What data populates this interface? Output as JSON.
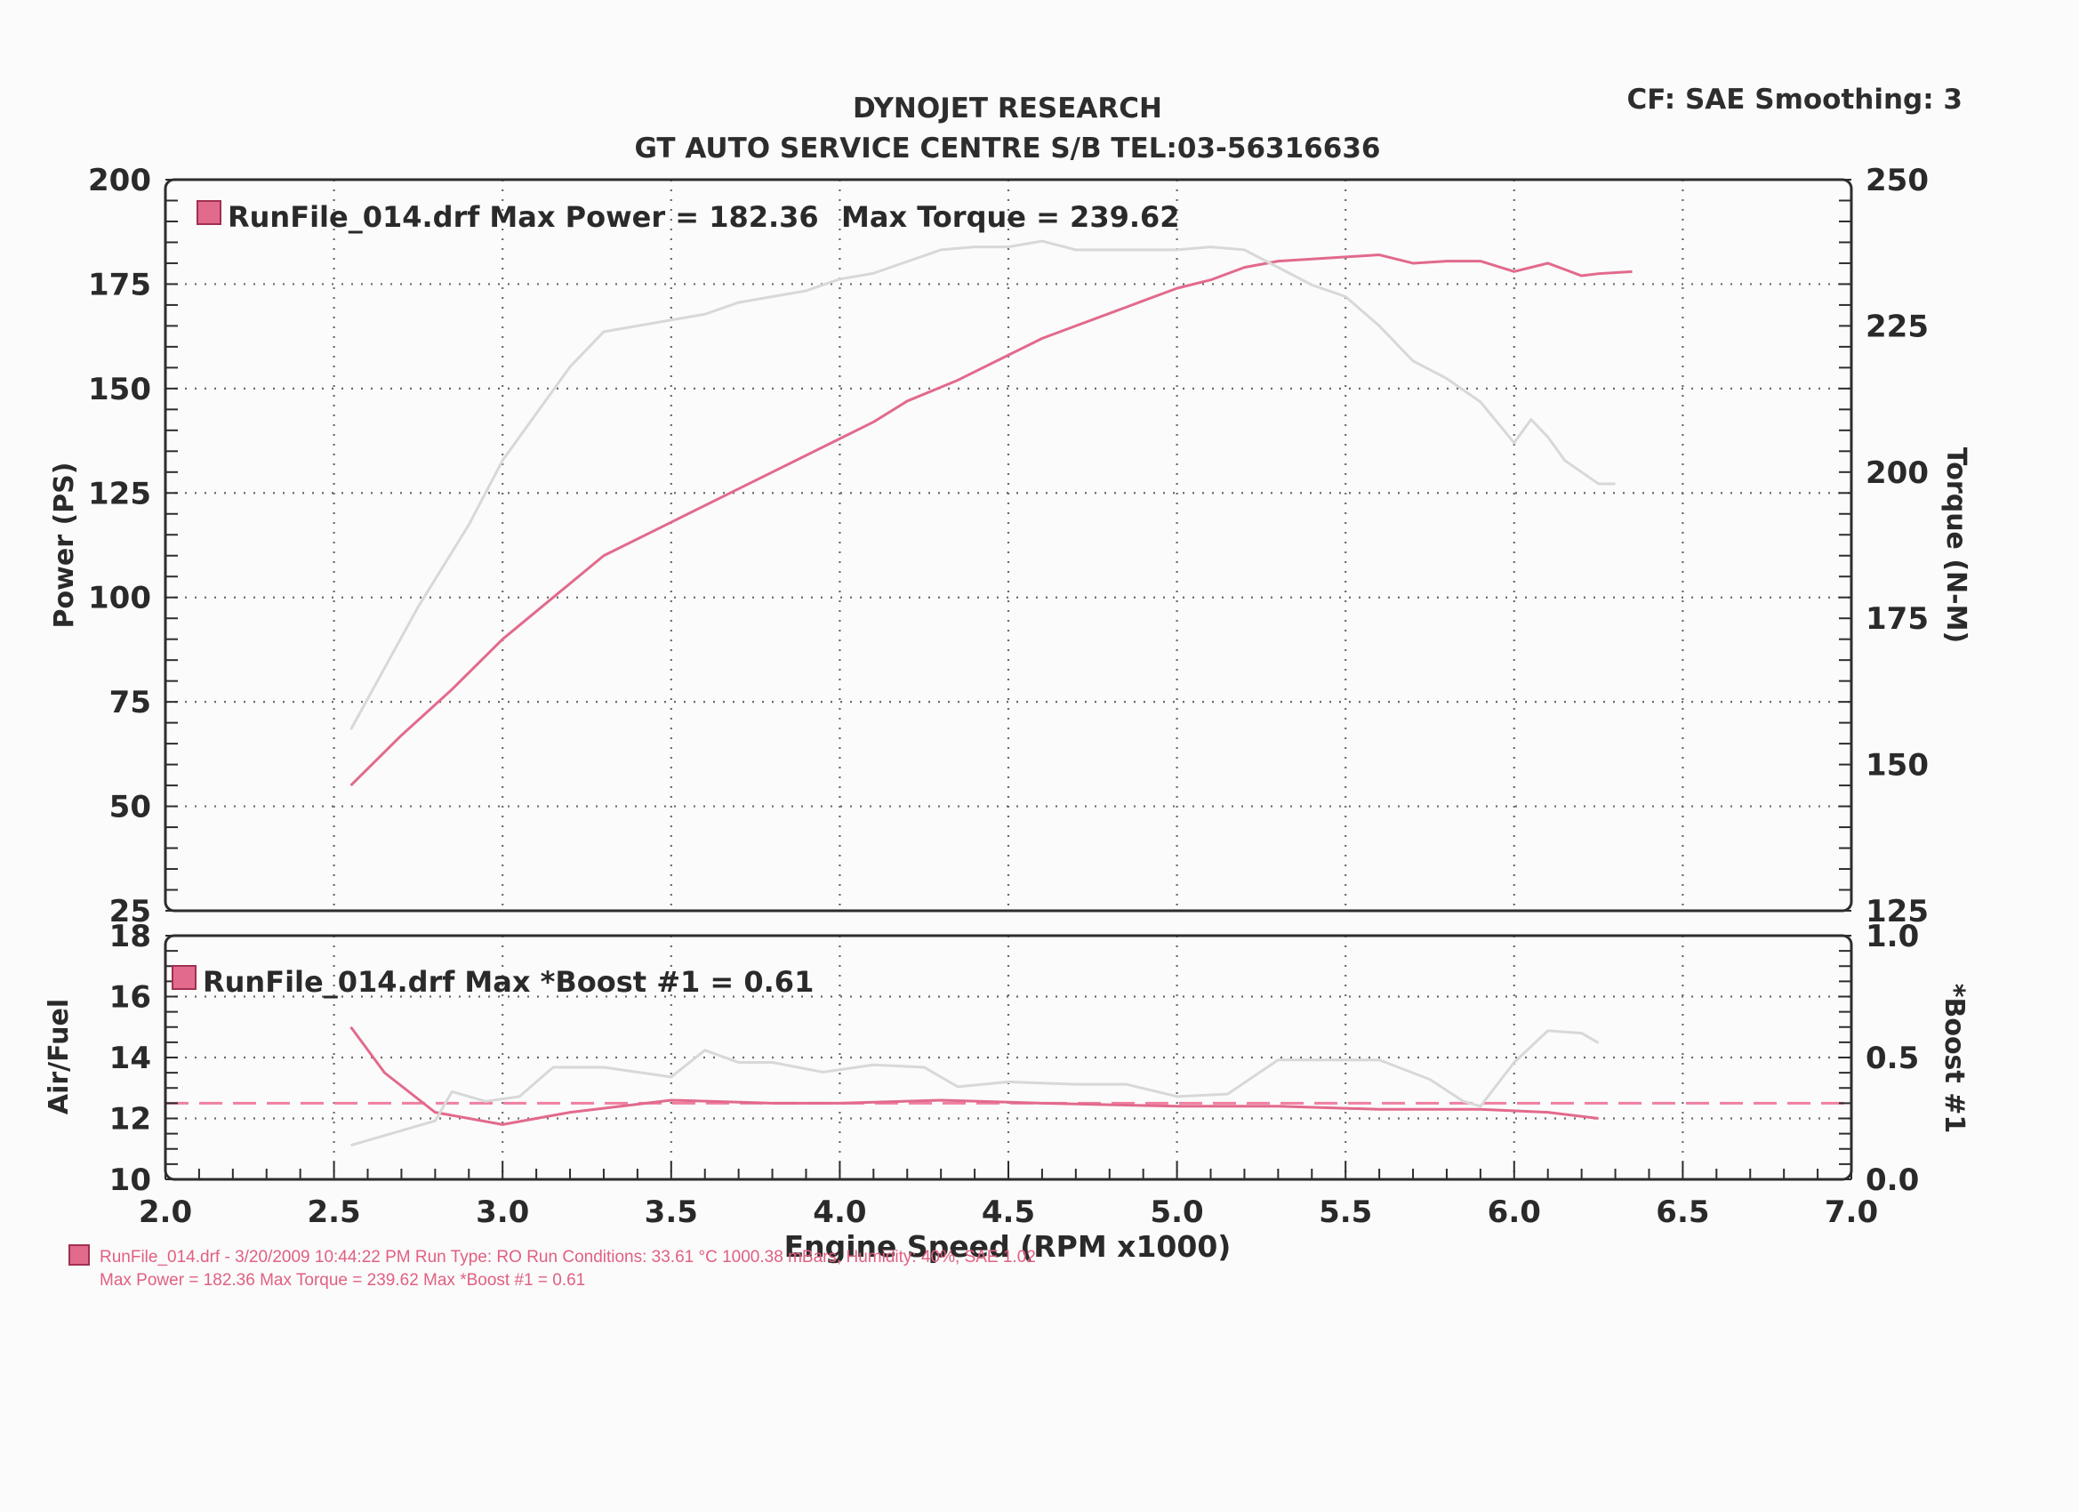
{
  "header": {
    "title": "DYNOJET RESEARCH",
    "subtitle": "GT AUTO SERVICE CENTRE S/B TEL:03-56316636",
    "settings": "CF: SAE  Smoothing: 3"
  },
  "chart_data": [
    {
      "type": "line",
      "name": "power-torque",
      "legend": "RunFile_014.drf Max Power = 182.36",
      "legend_extra": "Max Torque = 239.62",
      "xlabel": "Engine Speed (RPM x1000)",
      "xlim": [
        2.0,
        7.0
      ],
      "x_ticks": [
        "2.0",
        "2.5",
        "3.0",
        "3.5",
        "4.0",
        "4.5",
        "5.0",
        "5.5",
        "6.0",
        "6.5",
        "7.0"
      ],
      "ylabel": "Power (PS)",
      "ylim": [
        25,
        200
      ],
      "y_ticks": [
        "200",
        "175",
        "150",
        "125",
        "100",
        "75",
        "50",
        "25"
      ],
      "y2label": "Torque (N-M)",
      "y2lim": [
        125,
        250
      ],
      "y2_ticks": [
        "250",
        "225",
        "200",
        "175",
        "150",
        "125"
      ],
      "series": [
        {
          "axis": "left",
          "color": "#e26a8c",
          "x": [
            2.55,
            2.7,
            2.85,
            3.0,
            3.15,
            3.3,
            3.5,
            3.7,
            3.9,
            4.0,
            4.1,
            4.2,
            4.35,
            4.5,
            4.6,
            4.7,
            4.8,
            4.9,
            5.0,
            5.1,
            5.2,
            5.3,
            5.4,
            5.5,
            5.6,
            5.7,
            5.8,
            5.9,
            6.0,
            6.05,
            6.1,
            6.15,
            6.2,
            6.25,
            6.35
          ],
          "y": [
            55,
            67,
            78,
            90,
            100,
            110,
            118,
            126,
            134,
            138,
            142,
            147,
            152,
            158,
            162,
            165,
            168,
            171,
            174,
            176,
            179,
            180.5,
            181,
            181.5,
            182,
            180,
            180.5,
            180.5,
            178,
            179,
            180,
            178.5,
            177,
            177.5,
            178
          ]
        },
        {
          "axis": "right",
          "color": "#d8d8d8",
          "x": [
            2.55,
            2.75,
            2.9,
            3.0,
            3.1,
            3.2,
            3.3,
            3.4,
            3.5,
            3.6,
            3.7,
            3.8,
            3.9,
            4.0,
            4.1,
            4.2,
            4.3,
            4.4,
            4.5,
            4.6,
            4.7,
            4.8,
            4.9,
            5.0,
            5.1,
            5.2,
            5.3,
            5.4,
            5.5,
            5.6,
            5.7,
            5.8,
            5.9,
            6.0,
            6.05,
            6.1,
            6.15,
            6.2,
            6.25,
            6.3
          ],
          "y": [
            156,
            177,
            191,
            202,
            210,
            218,
            224,
            225,
            226,
            227,
            229,
            230,
            231,
            233,
            234,
            236,
            238,
            238.5,
            238.5,
            239.5,
            238,
            238,
            238,
            238,
            238.5,
            238,
            235,
            232,
            230,
            225,
            219,
            216,
            212,
            205,
            209,
            206,
            202,
            200,
            198,
            198
          ]
        }
      ]
    },
    {
      "type": "line",
      "name": "airfuel-boost",
      "legend": "RunFile_014.drf Max *Boost #1 = 0.61",
      "ylabel": "Air/Fuel",
      "ylim": [
        10,
        18
      ],
      "y_ticks": [
        "18",
        "16",
        "14",
        "12",
        "10"
      ],
      "y2label": "*Boost #1",
      "y2lim": [
        0.0,
        1.0
      ],
      "y2_ticks": [
        "1.0",
        "0.5",
        "0.0"
      ],
      "reference_line": 12.5,
      "series": [
        {
          "axis": "left",
          "color": "#e26a8c",
          "x": [
            2.55,
            2.65,
            2.8,
            3.0,
            3.2,
            3.5,
            3.8,
            4.0,
            4.3,
            4.6,
            5.0,
            5.3,
            5.6,
            5.9,
            6.1,
            6.25
          ],
          "y": [
            15.0,
            13.5,
            12.2,
            11.8,
            12.2,
            12.6,
            12.5,
            12.5,
            12.6,
            12.5,
            12.4,
            12.4,
            12.3,
            12.3,
            12.2,
            12.0
          ]
        },
        {
          "axis": "right",
          "color": "#d8d8d8",
          "x": [
            2.55,
            2.7,
            2.8,
            2.85,
            2.95,
            3.05,
            3.15,
            3.3,
            3.5,
            3.6,
            3.7,
            3.8,
            3.95,
            4.1,
            4.25,
            4.35,
            4.5,
            4.7,
            4.85,
            5.0,
            5.15,
            5.3,
            5.45,
            5.6,
            5.75,
            5.85,
            5.9,
            6.0,
            6.1,
            6.2,
            6.25
          ],
          "y": [
            0.14,
            0.2,
            0.24,
            0.36,
            0.32,
            0.34,
            0.46,
            0.46,
            0.42,
            0.53,
            0.48,
            0.48,
            0.44,
            0.47,
            0.46,
            0.38,
            0.4,
            0.39,
            0.39,
            0.34,
            0.35,
            0.49,
            0.49,
            0.49,
            0.41,
            0.32,
            0.3,
            0.48,
            0.61,
            0.6,
            0.56
          ]
        }
      ]
    }
  ],
  "footer": {
    "line1": "RunFile_014.drf - 3/20/2009 10:44:22 PM  Run Type: RO  Run Conditions: 33.61 °C 1000.38 mBars,  Humidity: 40%, SAE  1.02",
    "line2": "Max Power = 182.36  Max Torque = 239.62  Max *Boost #1 = 0.61",
    "legend_color": "#e26a8c"
  }
}
